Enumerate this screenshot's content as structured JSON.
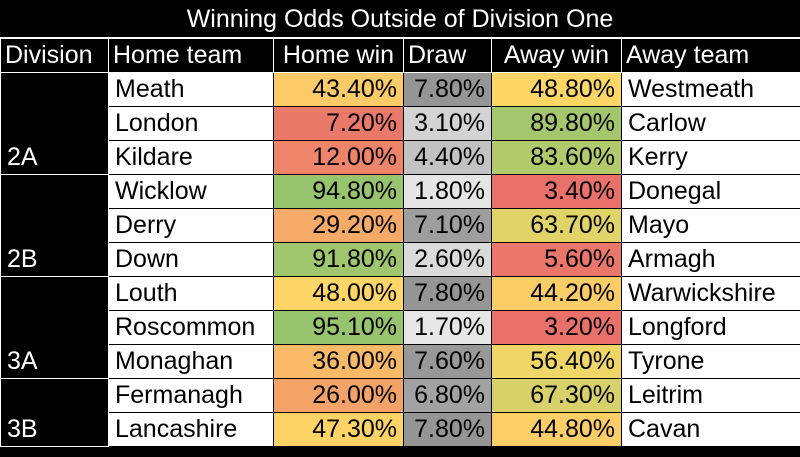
{
  "chart_data": {
    "type": "table",
    "title": "Winning Odds Outside of Division One",
    "columns": [
      "Division",
      "Home team",
      "Home win",
      "Draw",
      "Away win",
      "Away team"
    ],
    "groups": [
      {
        "division": "2A",
        "rows": [
          {
            "home_team": "Meath",
            "home_win": "43.40%",
            "draw": "7.80%",
            "away_win": "48.80%",
            "away_team": "Westmeath"
          },
          {
            "home_team": "London",
            "home_win": "7.20%",
            "draw": "3.10%",
            "away_win": "89.80%",
            "away_team": "Carlow"
          },
          {
            "home_team": "Kildare",
            "home_win": "12.00%",
            "draw": "4.40%",
            "away_win": "83.60%",
            "away_team": "Kerry"
          }
        ]
      },
      {
        "division": "2B",
        "rows": [
          {
            "home_team": "Wicklow",
            "home_win": "94.80%",
            "draw": "1.80%",
            "away_win": "3.40%",
            "away_team": "Donegal"
          },
          {
            "home_team": "Derry",
            "home_win": "29.20%",
            "draw": "7.10%",
            "away_win": "63.70%",
            "away_team": "Mayo"
          },
          {
            "home_team": "Down",
            "home_win": "91.80%",
            "draw": "2.60%",
            "away_win": "5.60%",
            "away_team": "Armagh"
          }
        ]
      },
      {
        "division": "3A",
        "rows": [
          {
            "home_team": "Louth",
            "home_win": "48.00%",
            "draw": "7.80%",
            "away_win": "44.20%",
            "away_team": "Warwickshire"
          },
          {
            "home_team": "Roscommon",
            "home_win": "95.10%",
            "draw": "1.70%",
            "away_win": "3.20%",
            "away_team": "Longford"
          },
          {
            "home_team": "Monaghan",
            "home_win": "36.00%",
            "draw": "7.60%",
            "away_win": "56.40%",
            "away_team": "Tyrone"
          }
        ]
      },
      {
        "division": "3B",
        "rows": [
          {
            "home_team": "Fermanagh",
            "home_win": "26.00%",
            "draw": "6.80%",
            "away_win": "67.30%",
            "away_team": "Leitrim"
          },
          {
            "home_team": "Lancashire",
            "home_win": "47.30%",
            "draw": "7.80%",
            "away_win": "44.80%",
            "away_team": "Cavan"
          }
        ]
      }
    ],
    "color_scales": {
      "win": {
        "low": "#e8696b",
        "mid": "#ffd966",
        "high": "#8dc26f"
      },
      "draw": {
        "low": "#e6e6e6",
        "high": "#959595"
      }
    }
  }
}
